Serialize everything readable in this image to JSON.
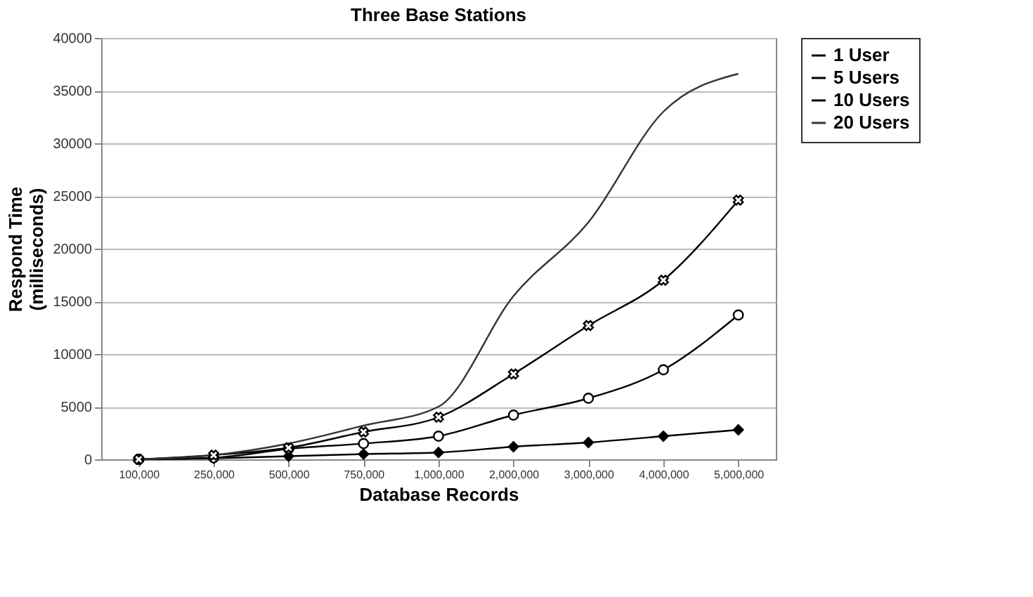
{
  "chart_data": {
    "type": "line",
    "title": "Three Base Stations",
    "xlabel": "Database Records",
    "ylabel": "Respond Time (milliseconds)",
    "categories": [
      "100,000",
      "250,000",
      "500,000",
      "750,000",
      "1,000,000",
      "2,000,000",
      "3,000,000",
      "4,000,000",
      "5,000,000"
    ],
    "series": [
      {
        "name": "1 User",
        "color": "#000000",
        "marker": "diamond",
        "values": [
          0,
          100,
          300,
          500,
          650,
          1200,
          1600,
          2200,
          2800
        ]
      },
      {
        "name": "5 Users",
        "color": "#000000",
        "marker": "circle",
        "values": [
          0,
          150,
          1000,
          1500,
          2200,
          4200,
          5800,
          8500,
          13700
        ]
      },
      {
        "name": "10 Users",
        "color": "#000000",
        "marker": "cross",
        "values": [
          0,
          400,
          1100,
          2600,
          4000,
          8100,
          12700,
          17000,
          24600
        ]
      },
      {
        "name": "20 Users",
        "color": "#333333",
        "marker": "none",
        "values": [
          0,
          400,
          1500,
          3200,
          5000,
          15500,
          22500,
          33000,
          36600
        ]
      }
    ],
    "ylim": [
      0,
      40000
    ],
    "yticks": [
      0,
      5000,
      10000,
      15000,
      20000,
      25000,
      30000,
      35000,
      40000
    ],
    "grid": "y",
    "legend": "right",
    "line_style": "solid"
  }
}
